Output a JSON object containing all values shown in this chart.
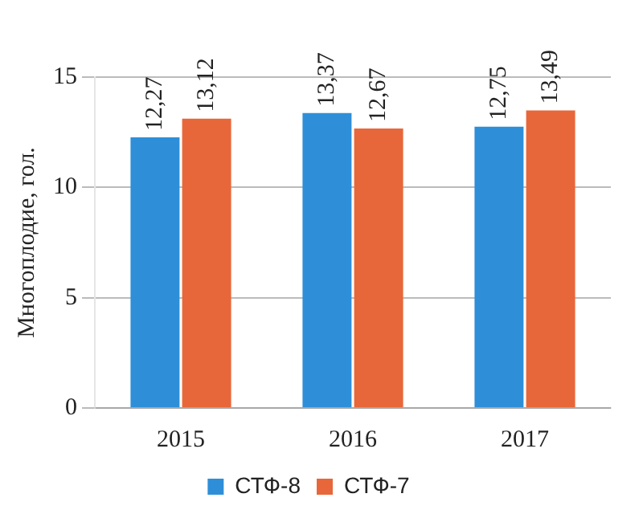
{
  "chart_data": {
    "type": "bar",
    "ylabel": "Многоплодие, гол.",
    "categories": [
      "2015",
      "2016",
      "2017"
    ],
    "series": [
      {
        "name": "СТФ-8",
        "color": "#2e8fd8",
        "values": [
          12.27,
          13.37,
          12.75
        ],
        "value_labels": [
          "12,27",
          "13,37",
          "12,75"
        ]
      },
      {
        "name": "СТФ-7",
        "color": "#e8673a",
        "values": [
          13.12,
          12.67,
          13.49
        ],
        "value_labels": [
          "13,12",
          "12,67",
          "13,49"
        ]
      }
    ],
    "ylim": [
      0,
      15
    ],
    "yticks": [
      0,
      5,
      10,
      15
    ],
    "grid": "y",
    "legend": "bottom"
  }
}
